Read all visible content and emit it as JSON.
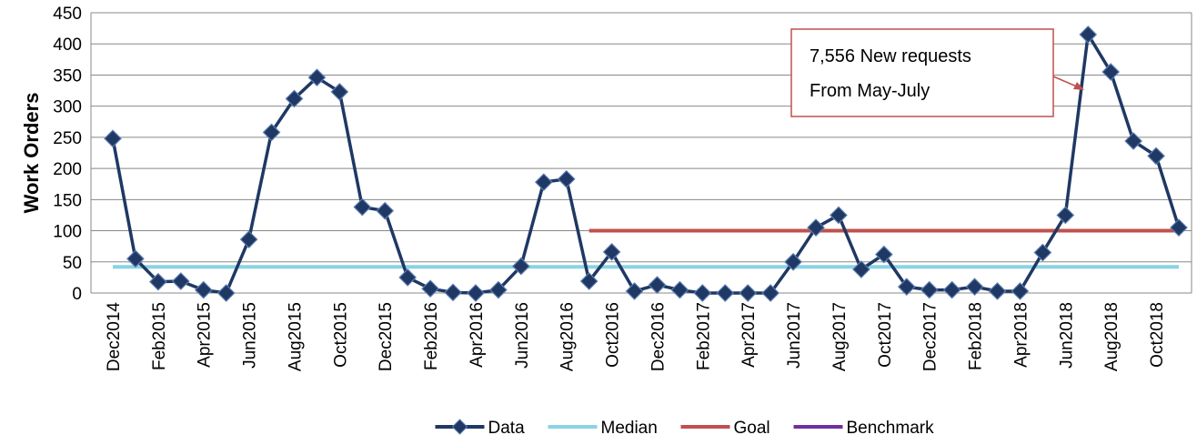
{
  "chart_data": {
    "type": "line",
    "y_label": "Work Orders",
    "categories": [
      "Dec2014",
      null,
      "Feb2015",
      null,
      "Apr2015",
      null,
      "Jun2015",
      null,
      "Aug2015",
      null,
      "Oct2015",
      null,
      "Dec2015",
      null,
      "Feb2016",
      null,
      "Apr2016",
      null,
      "Jun2016",
      null,
      "Aug2016",
      null,
      "Oct2016",
      null,
      "Dec2016",
      null,
      "Feb2017",
      null,
      "Apr2017",
      null,
      "Jun2017",
      null,
      "Aug2017",
      null,
      "Oct2017",
      null,
      "Dec2017",
      null,
      "Feb2018",
      null,
      "Apr2018",
      null,
      "Jun2018",
      null,
      "Aug2018",
      null,
      "Oct2018",
      null
    ],
    "series": [
      {
        "name": "Data",
        "color": "#1f3864",
        "marker": true,
        "values": [
          248,
          55,
          18,
          19,
          5,
          0,
          86,
          258,
          312,
          346,
          323,
          138,
          132,
          25,
          7,
          1,
          0,
          5,
          43,
          178,
          183,
          19,
          66,
          3,
          13,
          5,
          0,
          0,
          0,
          0,
          50,
          105,
          125,
          38,
          62,
          10,
          5,
          5,
          10,
          3,
          3,
          65,
          125,
          415,
          355,
          244,
          220,
          105
        ]
      },
      {
        "name": "Median",
        "color": "#8ad3e6",
        "marker": false,
        "values": [
          42,
          42,
          42,
          42,
          42,
          42,
          42,
          42,
          42,
          42,
          42,
          42,
          42,
          42,
          42,
          42,
          42,
          42,
          42,
          42,
          42,
          42,
          42,
          42,
          42,
          42,
          42,
          42,
          42,
          42,
          42,
          42,
          42,
          42,
          42,
          42,
          42,
          42,
          42,
          42,
          42,
          42,
          42,
          42,
          42,
          42,
          42,
          42
        ]
      },
      {
        "name": "Goal",
        "color": "#c0504d",
        "marker": false,
        "values": [
          null,
          null,
          null,
          null,
          null,
          null,
          null,
          null,
          null,
          null,
          null,
          null,
          null,
          null,
          null,
          null,
          null,
          null,
          null,
          null,
          null,
          100,
          100,
          100,
          100,
          100,
          100,
          100,
          100,
          100,
          100,
          100,
          100,
          100,
          100,
          100,
          100,
          100,
          100,
          100,
          100,
          100,
          100,
          100,
          100,
          100,
          100,
          100
        ]
      },
      {
        "name": "Benchmark",
        "color": "#7030a0",
        "marker": false,
        "values": [
          null,
          null,
          null,
          null,
          null,
          null,
          null,
          null,
          null,
          null,
          null,
          null,
          null,
          null,
          null,
          null,
          null,
          null,
          null,
          null,
          null,
          null,
          null,
          null,
          null,
          null,
          null,
          null,
          null,
          null,
          null,
          null,
          null,
          null,
          null,
          null,
          null,
          null,
          null,
          null,
          null,
          null,
          null,
          null,
          null,
          null,
          null,
          null
        ]
      }
    ],
    "ylim": [
      0,
      450
    ],
    "yticks": [
      0,
      50,
      100,
      150,
      200,
      250,
      300,
      350,
      400,
      450
    ],
    "grid": true,
    "legend": "bottom",
    "annotation": [
      "7,556 New requests",
      "From May-July"
    ]
  }
}
